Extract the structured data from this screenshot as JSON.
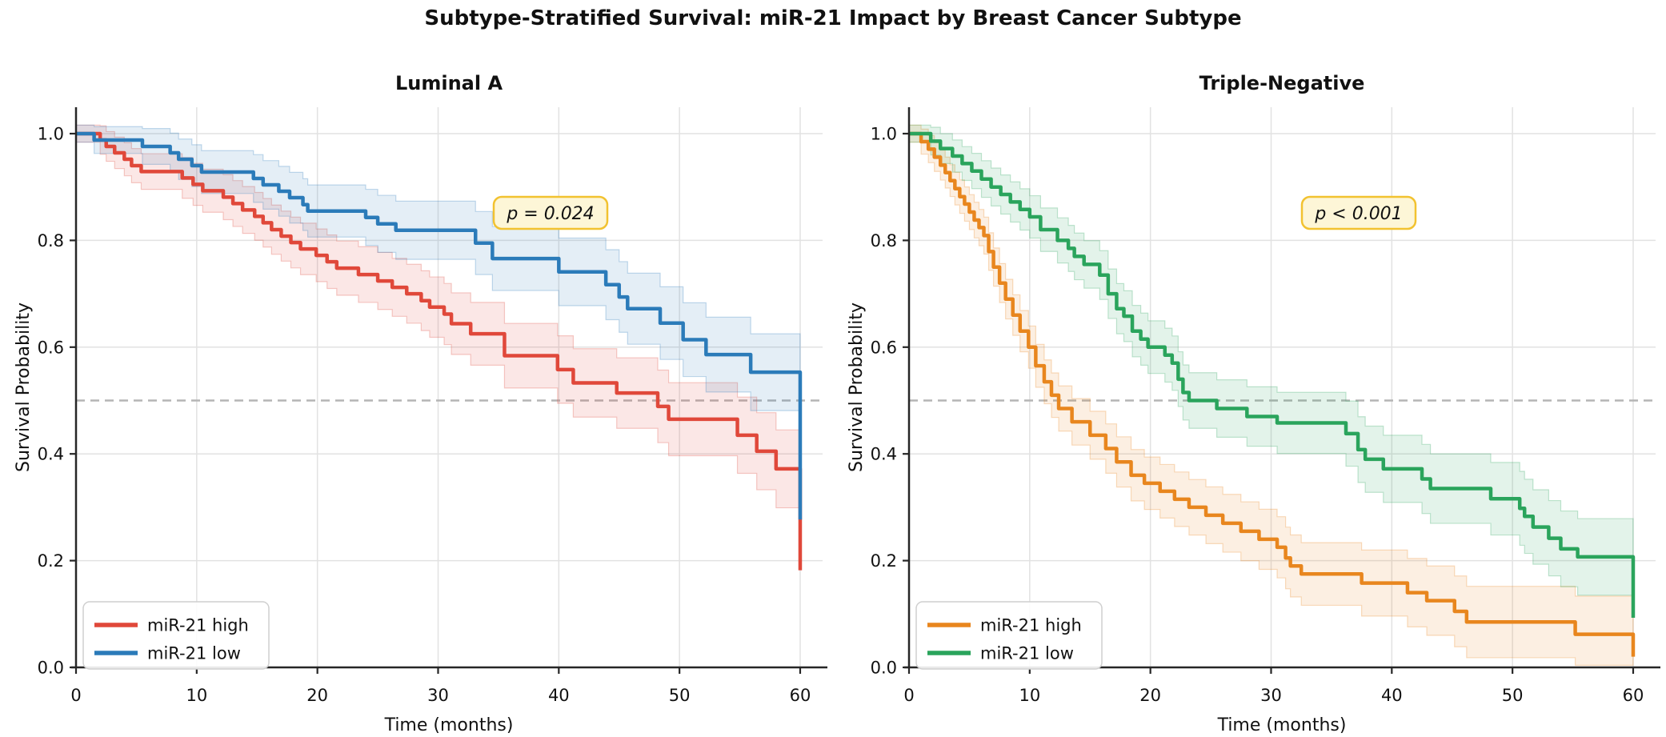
{
  "page_title": "Subtype-Stratified Survival: miR-21 Impact by Breast Cancer Subtype",
  "chart_data": [
    {
      "type": "line",
      "subtype": "kaplan-meier-step",
      "title": "Luminal A",
      "p_annotation": "p = 0.024",
      "xlabel": "Time (months)",
      "ylabel": "Survival Probability",
      "xlim": [
        0,
        60
      ],
      "ylim": [
        0.0,
        1.05
      ],
      "x_ticks": [
        "0",
        "10",
        "20",
        "30",
        "40",
        "50",
        "60"
      ],
      "y_ticks": [
        "0.0",
        "0.2",
        "0.4",
        "0.6",
        "0.8",
        "1.0"
      ],
      "median_line": 0.5,
      "grid": true,
      "legend_position": "lower left",
      "colors": {
        "high": "#e0483a",
        "low": "#2b7bb9",
        "annotation_bg": "#fdf6d7",
        "annotation_border": "#f2c230",
        "median": "#b5b5b5"
      },
      "series": [
        {
          "name": "miR-21 high",
          "key": "high",
          "points": [
            [
              0,
              1.0
            ],
            [
              2,
              0.988
            ],
            [
              2.5,
              0.976
            ],
            [
              3.2,
              0.964
            ],
            [
              4,
              0.952
            ],
            [
              4.6,
              0.94
            ],
            [
              5.4,
              0.929
            ],
            [
              8.8,
              0.917
            ],
            [
              9.7,
              0.905
            ],
            [
              10.5,
              0.893
            ],
            [
              12.2,
              0.881
            ],
            [
              13,
              0.869
            ],
            [
              13.8,
              0.857
            ],
            [
              14.8,
              0.845
            ],
            [
              15.5,
              0.833
            ],
            [
              16.2,
              0.82
            ],
            [
              17,
              0.808
            ],
            [
              17.8,
              0.796
            ],
            [
              18.6,
              0.784
            ],
            [
              19.9,
              0.772
            ],
            [
              20.8,
              0.76
            ],
            [
              21.6,
              0.748
            ],
            [
              23.4,
              0.736
            ],
            [
              25,
              0.724
            ],
            [
              26.2,
              0.712
            ],
            [
              27.4,
              0.7
            ],
            [
              28.6,
              0.687
            ],
            [
              29.3,
              0.675
            ],
            [
              30.5,
              0.662
            ],
            [
              31.1,
              0.644
            ],
            [
              32.7,
              0.625
            ],
            [
              35.5,
              0.584
            ],
            [
              39.9,
              0.558
            ],
            [
              41.2,
              0.533
            ],
            [
              44.8,
              0.514
            ],
            [
              48.2,
              0.489
            ],
            [
              49.1,
              0.465
            ],
            [
              54.8,
              0.435
            ],
            [
              56.4,
              0.405
            ],
            [
              58,
              0.372
            ],
            [
              60,
              0.182
            ]
          ]
        },
        {
          "name": "miR-21 low",
          "key": "low",
          "points": [
            [
              0,
              1.0
            ],
            [
              1.5,
              0.988
            ],
            [
              5.5,
              0.976
            ],
            [
              7.8,
              0.964
            ],
            [
              8.5,
              0.952
            ],
            [
              9.6,
              0.94
            ],
            [
              10.4,
              0.928
            ],
            [
              14.7,
              0.916
            ],
            [
              15.5,
              0.904
            ],
            [
              16.8,
              0.892
            ],
            [
              17.7,
              0.88
            ],
            [
              18.8,
              0.867
            ],
            [
              19.2,
              0.855
            ],
            [
              24,
              0.843
            ],
            [
              25,
              0.831
            ],
            [
              26.5,
              0.819
            ],
            [
              33.1,
              0.795
            ],
            [
              34.5,
              0.766
            ],
            [
              40,
              0.741
            ],
            [
              43.9,
              0.717
            ],
            [
              45,
              0.694
            ],
            [
              45.7,
              0.672
            ],
            [
              48.4,
              0.645
            ],
            [
              50.3,
              0.614
            ],
            [
              52.2,
              0.586
            ],
            [
              55.9,
              0.553
            ],
            [
              60,
              0.277
            ]
          ]
        }
      ]
    },
    {
      "type": "line",
      "subtype": "kaplan-meier-step",
      "title": "Triple-Negative",
      "p_annotation": "p < 0.001",
      "xlabel": "Time (months)",
      "ylabel": "Survival Probability",
      "xlim": [
        0,
        60
      ],
      "ylim": [
        0.0,
        1.05
      ],
      "x_ticks": [
        "0",
        "10",
        "20",
        "30",
        "40",
        "50",
        "60"
      ],
      "y_ticks": [
        "0.0",
        "0.2",
        "0.4",
        "0.6",
        "0.8",
        "1.0"
      ],
      "median_line": 0.5,
      "grid": true,
      "legend_position": "lower left",
      "colors": {
        "high": "#e8861e",
        "low": "#2aa45c",
        "annotation_bg": "#fdf6d7",
        "annotation_border": "#f2c230",
        "median": "#b5b5b5"
      },
      "series": [
        {
          "name": "miR-21 high",
          "key": "high",
          "points": [
            [
              0,
              1.0
            ],
            [
              1,
              0.985
            ],
            [
              1.6,
              0.971
            ],
            [
              2.1,
              0.956
            ],
            [
              2.6,
              0.941
            ],
            [
              3,
              0.927
            ],
            [
              3.4,
              0.912
            ],
            [
              3.8,
              0.897
            ],
            [
              4.2,
              0.882
            ],
            [
              4.6,
              0.868
            ],
            [
              5,
              0.853
            ],
            [
              5.4,
              0.838
            ],
            [
              5.8,
              0.824
            ],
            [
              6.2,
              0.809
            ],
            [
              6.6,
              0.779
            ],
            [
              7,
              0.75
            ],
            [
              7.5,
              0.72
            ],
            [
              8,
              0.69
            ],
            [
              8.6,
              0.66
            ],
            [
              9.2,
              0.63
            ],
            [
              9.9,
              0.6
            ],
            [
              10.5,
              0.565
            ],
            [
              11.2,
              0.535
            ],
            [
              11.8,
              0.51
            ],
            [
              12.4,
              0.485
            ],
            [
              13.5,
              0.46
            ],
            [
              15,
              0.435
            ],
            [
              16.3,
              0.41
            ],
            [
              17.2,
              0.385
            ],
            [
              18.4,
              0.36
            ],
            [
              19.5,
              0.345
            ],
            [
              20.8,
              0.33
            ],
            [
              22,
              0.315
            ],
            [
              23.2,
              0.3
            ],
            [
              24.6,
              0.285
            ],
            [
              26,
              0.27
            ],
            [
              27.5,
              0.255
            ],
            [
              29,
              0.24
            ],
            [
              30.5,
              0.225
            ],
            [
              31.2,
              0.205
            ],
            [
              31.6,
              0.19
            ],
            [
              32.5,
              0.175
            ],
            [
              37.5,
              0.158
            ],
            [
              41.3,
              0.14
            ],
            [
              42.9,
              0.125
            ],
            [
              45.2,
              0.105
            ],
            [
              46.2,
              0.085
            ],
            [
              55.2,
              0.062
            ],
            [
              60,
              0.02
            ]
          ]
        },
        {
          "name": "miR-21 low",
          "key": "low",
          "points": [
            [
              0,
              1.0
            ],
            [
              1.8,
              0.986
            ],
            [
              2.6,
              0.972
            ],
            [
              3.6,
              0.958
            ],
            [
              4.4,
              0.944
            ],
            [
              5.2,
              0.93
            ],
            [
              6,
              0.915
            ],
            [
              6.8,
              0.9
            ],
            [
              7.6,
              0.886
            ],
            [
              8.4,
              0.872
            ],
            [
              9.2,
              0.858
            ],
            [
              10,
              0.844
            ],
            [
              10.9,
              0.82
            ],
            [
              12.3,
              0.8
            ],
            [
              13.2,
              0.785
            ],
            [
              13.7,
              0.77
            ],
            [
              14.5,
              0.755
            ],
            [
              15.8,
              0.735
            ],
            [
              16.5,
              0.7
            ],
            [
              17.2,
              0.672
            ],
            [
              17.8,
              0.658
            ],
            [
              18.5,
              0.63
            ],
            [
              19.2,
              0.615
            ],
            [
              19.8,
              0.6
            ],
            [
              21.2,
              0.585
            ],
            [
              21.8,
              0.57
            ],
            [
              22.3,
              0.54
            ],
            [
              22.7,
              0.515
            ],
            [
              23.2,
              0.5
            ],
            [
              25.5,
              0.485
            ],
            [
              28,
              0.47
            ],
            [
              30.5,
              0.458
            ],
            [
              36.2,
              0.438
            ],
            [
              37.2,
              0.408
            ],
            [
              37.8,
              0.39
            ],
            [
              39.3,
              0.372
            ],
            [
              42.5,
              0.353
            ],
            [
              43.2,
              0.335
            ],
            [
              48.2,
              0.316
            ],
            [
              50.6,
              0.298
            ],
            [
              51,
              0.283
            ],
            [
              51.7,
              0.263
            ],
            [
              53,
              0.242
            ],
            [
              54,
              0.222
            ],
            [
              55.4,
              0.207
            ],
            [
              60,
              0.093
            ]
          ]
        }
      ]
    }
  ]
}
